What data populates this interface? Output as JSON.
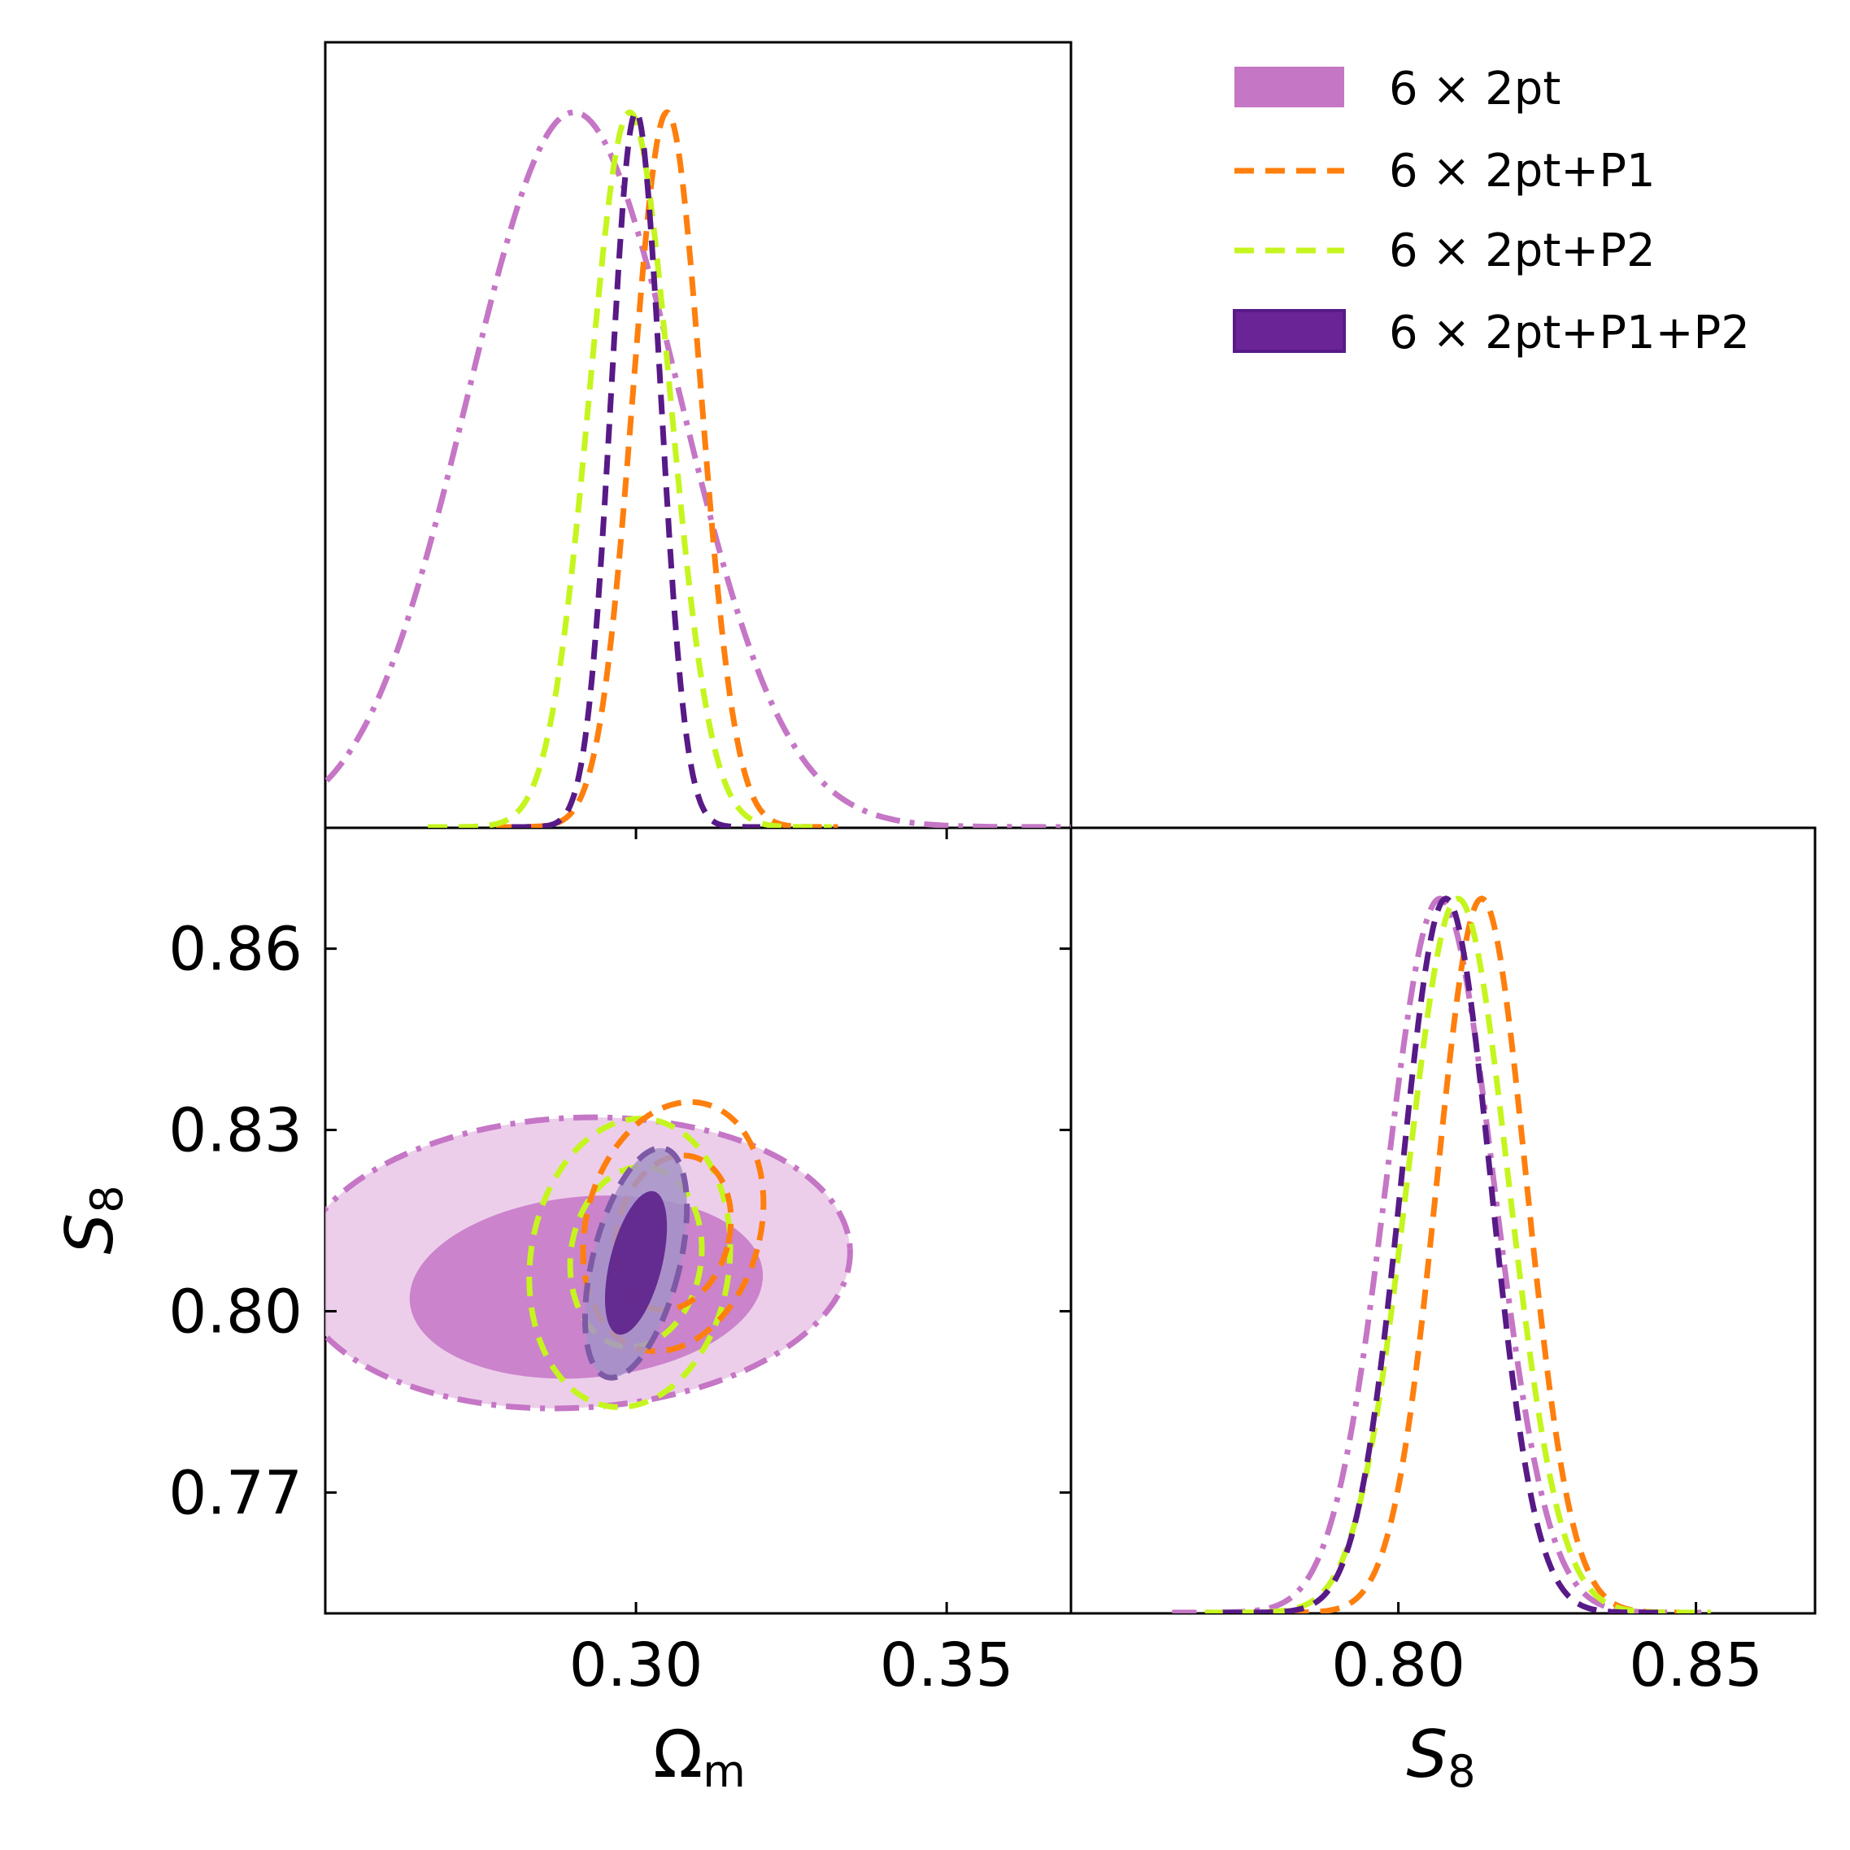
{
  "colors": {
    "p6x2pt": "#c576c5",
    "p6x2pt_light": "#e9c6e7",
    "p1": "#ff7f0e",
    "p2": "#c5f51e",
    "p12": "#581a87",
    "p12_light": "#a493c8",
    "axes": "#000000"
  },
  "chart_data": {
    "type": "triangle",
    "legend": [
      {
        "label": "6 × 2pt",
        "style": "filled",
        "color": "#c576c5"
      },
      {
        "label": "6 × 2pt+P1",
        "style": "dashed",
        "color": "#ff7f0e"
      },
      {
        "label": "6 × 2pt+P2",
        "style": "dashed",
        "color": "#c5f51e"
      },
      {
        "label": "6 × 2pt+P1+P2",
        "style": "filled",
        "color": "#581a87"
      }
    ],
    "parameters": {
      "Om": {
        "label": "Ωm",
        "range": [
          0.25,
          0.37
        ],
        "ticks": [
          0.3,
          0.35
        ],
        "tick_labels": [
          "0.30",
          "0.35"
        ]
      },
      "S8": {
        "label": "S8",
        "range": [
          0.75,
          0.88
        ],
        "ticks": [
          0.77,
          0.8,
          0.83,
          0.86
        ],
        "tick_labels": [
          "0.77",
          "0.80",
          "0.83",
          "0.86"
        ],
        "diag_range": [
          0.745,
          0.87
        ],
        "diag_ticks": [
          0.8,
          0.85
        ],
        "diag_tick_labels": [
          "0.80",
          "0.85"
        ]
      }
    },
    "marginals_Om": [
      {
        "name": "6 × 2pt",
        "mean": 0.29,
        "sd": 0.017,
        "style": "dashdot",
        "color": "#c576c5"
      },
      {
        "name": "6 × 2pt+P1",
        "mean": 0.305,
        "sd": 0.0055,
        "style": "dashed",
        "color": "#ff7f0e"
      },
      {
        "name": "6 × 2pt+P2",
        "mean": 0.299,
        "sd": 0.0065,
        "style": "dashed",
        "color": "#c5f51e"
      },
      {
        "name": "6 × 2pt+P1+P2",
        "mean": 0.3,
        "sd": 0.004,
        "style": "dashed",
        "color": "#581a87"
      }
    ],
    "marginals_S8": [
      {
        "name": "6 × 2pt",
        "mean": 0.807,
        "sd": 0.009,
        "style": "dashdot",
        "color": "#c576c5"
      },
      {
        "name": "6 × 2pt+P1",
        "mean": 0.814,
        "sd": 0.0075,
        "style": "dashed",
        "color": "#ff7f0e"
      },
      {
        "name": "6 × 2pt+P2",
        "mean": 0.81,
        "sd": 0.0085,
        "style": "dashed",
        "color": "#c5f51e"
      },
      {
        "name": "6 × 2pt+P1+P2",
        "mean": 0.808,
        "sd": 0.0075,
        "style": "dashed",
        "color": "#581a87"
      }
    ],
    "contours": [
      {
        "name": "6 × 2pt 95%",
        "cx": 0.29,
        "cy": 0.808,
        "rx": 0.0445,
        "ry": 0.024,
        "rot": -3,
        "fill": "#e9c6e7",
        "stroke": "#c576c5",
        "style": "dashdot"
      },
      {
        "name": "6 × 2pt 68%",
        "cx": 0.292,
        "cy": 0.804,
        "rx": 0.0285,
        "ry": 0.015,
        "rot": -5,
        "fill": "#c576c5",
        "stroke": "none",
        "style": "solid"
      },
      {
        "name": "6 × 2pt+P2 95%",
        "cx": 0.299,
        "cy": 0.808,
        "rx": 0.016,
        "ry": 0.024,
        "rot": 8,
        "fill": "none",
        "stroke": "#c5f51e",
        "style": "dashed"
      },
      {
        "name": "6 × 2pt+P2 68%",
        "cx": 0.3,
        "cy": 0.809,
        "rx": 0.0105,
        "ry": 0.015,
        "rot": 8,
        "fill": "none",
        "stroke": "#c5f51e",
        "style": "dashed"
      },
      {
        "name": "6 × 2pt+P1 95%",
        "cx": 0.306,
        "cy": 0.814,
        "rx": 0.014,
        "ry": 0.021,
        "rot": 15,
        "fill": "none",
        "stroke": "#ff7f0e",
        "style": "dashed"
      },
      {
        "name": "6 × 2pt+P1 68%",
        "cx": 0.306,
        "cy": 0.813,
        "rx": 0.009,
        "ry": 0.013,
        "rot": 15,
        "fill": "none",
        "stroke": "#ff7f0e",
        "style": "dashed"
      },
      {
        "name": "6 × 2pt+P1+P2 95%",
        "cx": 0.3,
        "cy": 0.808,
        "rx": 0.007,
        "ry": 0.0195,
        "rot": 14,
        "fill": "#a493c8",
        "stroke": "#7d5aa5",
        "style": "dashed"
      },
      {
        "name": "6 × 2pt+P1+P2 68%",
        "cx": 0.3,
        "cy": 0.808,
        "rx": 0.0042,
        "ry": 0.0122,
        "rot": 14,
        "fill": "#581a87",
        "stroke": "none",
        "style": "solid"
      }
    ]
  }
}
